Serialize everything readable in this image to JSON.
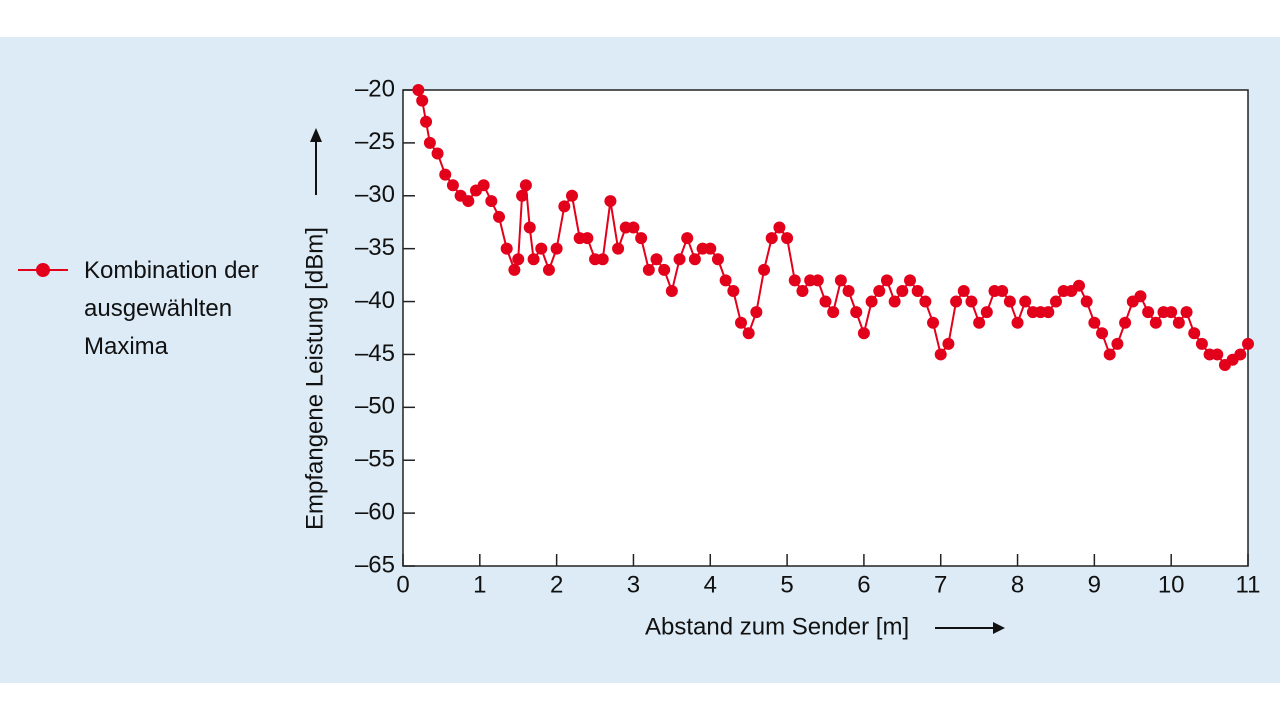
{
  "chart_data": {
    "type": "line",
    "xlabel": "Abstand zum Sender [m]",
    "ylabel": "Empfangene Leistung [dBm]",
    "xlim": [
      0,
      11
    ],
    "ylim": [
      -65,
      -20
    ],
    "xticks": [
      0,
      1,
      2,
      3,
      4,
      5,
      6,
      7,
      8,
      9,
      10,
      11
    ],
    "yticks": [
      {
        "value": -20,
        "label": "–20"
      },
      {
        "value": -25,
        "label": "–25"
      },
      {
        "value": -30,
        "label": "–30"
      },
      {
        "value": -35,
        "label": "–35"
      },
      {
        "value": -40,
        "label": "–40"
      },
      {
        "value": -45,
        "label": "–45"
      },
      {
        "value": -50,
        "label": "–50"
      },
      {
        "value": -55,
        "label": "–55"
      },
      {
        "value": -60,
        "label": "–60"
      },
      {
        "value": -65,
        "label": "–65"
      }
    ],
    "legend": "left",
    "series": [
      {
        "name": "Kombination der ausgewählten Maxima",
        "color": "#e3001b",
        "x": [
          0.2,
          0.25,
          0.3,
          0.35,
          0.45,
          0.55,
          0.65,
          0.75,
          0.85,
          0.95,
          1.05,
          1.15,
          1.25,
          1.35,
          1.45,
          1.5,
          1.55,
          1.6,
          1.65,
          1.7,
          1.8,
          1.9,
          2.0,
          2.1,
          2.2,
          2.3,
          2.4,
          2.5,
          2.6,
          2.7,
          2.8,
          2.9,
          3.0,
          3.1,
          3.2,
          3.3,
          3.4,
          3.5,
          3.6,
          3.7,
          3.8,
          3.9,
          4.0,
          4.1,
          4.2,
          4.3,
          4.4,
          4.5,
          4.6,
          4.7,
          4.8,
          4.9,
          5.0,
          5.1,
          5.2,
          5.3,
          5.4,
          5.5,
          5.6,
          5.7,
          5.8,
          5.9,
          6.0,
          6.1,
          6.2,
          6.3,
          6.4,
          6.5,
          6.6,
          6.7,
          6.8,
          6.9,
          7.0,
          7.1,
          7.2,
          7.3,
          7.4,
          7.5,
          7.6,
          7.7,
          7.8,
          7.9,
          8.0,
          8.1,
          8.2,
          8.3,
          8.4,
          8.5,
          8.6,
          8.7,
          8.8,
          8.9,
          9.0,
          9.1,
          9.2,
          9.3,
          9.4,
          9.5,
          9.6,
          9.7,
          9.8,
          9.9,
          10.0,
          10.1,
          10.2,
          10.3,
          10.4,
          10.5,
          10.6,
          10.7,
          10.8,
          10.9,
          11.0
        ],
        "values": [
          -20,
          -21,
          -23,
          -25,
          -26,
          -28,
          -29,
          -30,
          -30.5,
          -29.5,
          -29,
          -30.5,
          -32,
          -35,
          -37,
          -36,
          -30,
          -29,
          -33,
          -36,
          -35,
          -37,
          -35,
          -31,
          -30,
          -34,
          -34,
          -36,
          -36,
          -30.5,
          -35,
          -33,
          -33,
          -34,
          -37,
          -36,
          -37,
          -39,
          -36,
          -34,
          -36,
          -35,
          -35,
          -36,
          -38,
          -39,
          -42,
          -43,
          -41,
          -37,
          -34,
          -33,
          -34,
          -38,
          -39,
          -38,
          -38,
          -40,
          -41,
          -38,
          -39,
          -41,
          -43,
          -40,
          -39,
          -38,
          -40,
          -39,
          -38,
          -39,
          -40,
          -42,
          -45,
          -44,
          -40,
          -39,
          -40,
          -42,
          -41,
          -39,
          -39,
          -40,
          -42,
          -40,
          -41,
          -41,
          -41,
          -40,
          -39,
          -39,
          -38.5,
          -40,
          -42,
          -43,
          -45,
          -44,
          -42,
          -40,
          -39.5,
          -41,
          -42,
          -41,
          -41,
          -42,
          -41,
          -43,
          -44,
          -45,
          -45,
          -46,
          -45.5,
          -45,
          -44
        ]
      }
    ]
  }
}
